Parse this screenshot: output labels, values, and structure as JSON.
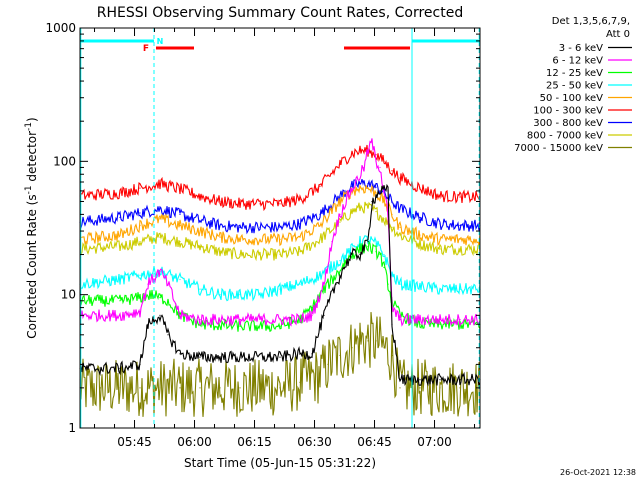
{
  "chart_data": {
    "type": "line",
    "title": "RHESSI Observing Summary Count Rates, Corrected",
    "xlabel": "Start Time (05-Jun-15 05:31:22)",
    "ylabel_main": "Corrected Count Rate (s",
    "ylabel_sup1": "-1",
    "ylabel_mid": " detector",
    "ylabel_sup2": "-1",
    "ylabel_end": ")",
    "yscale": "log",
    "ylim": [
      1,
      1000
    ],
    "xlim_minutes": [
      0,
      100
    ],
    "x_ticks": [
      {
        "minute": 13.63,
        "label": "05:45"
      },
      {
        "minute": 28.63,
        "label": "06:00"
      },
      {
        "minute": 43.63,
        "label": "06:15"
      },
      {
        "minute": 58.63,
        "label": "06:30"
      },
      {
        "minute": 73.63,
        "label": "06:45"
      },
      {
        "minute": 88.63,
        "label": "07:00"
      }
    ],
    "y_ticks": [
      {
        "value": 1,
        "label": "1"
      },
      {
        "value": 10,
        "label": "10"
      },
      {
        "value": 100,
        "label": "100"
      },
      {
        "value": 1000,
        "label": "1000"
      }
    ],
    "legend_header": [
      "Det 1,3,5,6,7,9,",
      "Att 0"
    ],
    "series": [
      {
        "name": "3 - 6 keV",
        "color": "#000000",
        "x": [
          0,
          10,
          15,
          17,
          20,
          22,
          25,
          30,
          40,
          50,
          55,
          58,
          61,
          64,
          66,
          68,
          70,
          72,
          73,
          75,
          77,
          78,
          80,
          85,
          90,
          95,
          100
        ],
        "y": [
          2.8,
          2.8,
          3.0,
          6.0,
          7.0,
          5.0,
          3.6,
          3.4,
          3.4,
          3.4,
          3.6,
          3.6,
          7,
          12,
          16,
          20,
          20,
          25,
          50,
          60,
          60,
          6,
          2.3,
          2.3,
          2.3,
          2.3,
          2.3
        ]
      },
      {
        "name": "6 - 12 keV",
        "color": "#ff00ff",
        "x": [
          0,
          10,
          15,
          17,
          20,
          22,
          25,
          30,
          40,
          50,
          55,
          58,
          61,
          63,
          65,
          67,
          69,
          71,
          72,
          73,
          74,
          75,
          76,
          77,
          78,
          80,
          85,
          90,
          95,
          100
        ],
        "y": [
          7,
          7,
          7.5,
          12,
          15,
          12,
          7,
          6.5,
          6.5,
          6.5,
          6.5,
          7,
          12,
          25,
          40,
          55,
          70,
          90,
          120,
          140,
          100,
          90,
          60,
          40,
          8,
          6.5,
          6.5,
          6.5,
          6.5,
          6.5
        ]
      },
      {
        "name": "12 - 25 keV",
        "color": "#00ff00",
        "x": [
          0,
          10,
          15,
          18,
          20,
          22,
          25,
          30,
          40,
          50,
          55,
          58,
          61,
          64,
          66,
          68,
          70,
          72,
          74,
          75,
          76,
          77,
          78,
          80,
          85,
          90,
          95,
          100
        ],
        "y": [
          9,
          9,
          9.5,
          10,
          9.5,
          9,
          7,
          6,
          5.8,
          5.8,
          6.5,
          8,
          11,
          14,
          17,
          20,
          22,
          23,
          21,
          20,
          16,
          12,
          9,
          7,
          6,
          6,
          6,
          6
        ]
      },
      {
        "name": "25 - 50 keV",
        "color": "#00ffff",
        "x": [
          0,
          5,
          10,
          15,
          20,
          25,
          30,
          35,
          40,
          45,
          50,
          55,
          60,
          65,
          70,
          72,
          74,
          76,
          78,
          80,
          85,
          90,
          95,
          100
        ],
        "y": [
          12,
          12.5,
          13,
          14,
          15,
          13,
          11,
          10,
          10,
          10,
          11,
          12,
          14,
          18,
          25,
          26,
          24,
          20,
          14,
          12,
          11.5,
          11,
          11,
          11
        ]
      },
      {
        "name": "50 - 100 keV",
        "color": "#ffa500",
        "x": [
          0,
          10,
          15,
          20,
          25,
          30,
          35,
          40,
          45,
          50,
          55,
          60,
          65,
          68,
          70,
          72,
          74,
          76,
          78,
          80,
          85,
          90,
          95,
          100
        ],
        "y": [
          26,
          28,
          33,
          37,
          33,
          30,
          27,
          26,
          26,
          26,
          27,
          33,
          50,
          60,
          63,
          63,
          58,
          50,
          40,
          32,
          28,
          26,
          26,
          26
        ]
      },
      {
        "name": "100 - 300 keV",
        "color": "#ff0000",
        "x": [
          0,
          10,
          15,
          20,
          25,
          30,
          35,
          40,
          45,
          50,
          55,
          60,
          65,
          68,
          70,
          72,
          74,
          76,
          78,
          80,
          85,
          90,
          95,
          100
        ],
        "y": [
          55,
          58,
          63,
          68,
          62,
          55,
          50,
          48,
          48,
          48,
          52,
          65,
          95,
          115,
          120,
          120,
          112,
          100,
          85,
          75,
          63,
          55,
          54,
          54
        ]
      },
      {
        "name": "300 - 800 keV",
        "color": "#0000ff",
        "x": [
          0,
          10,
          15,
          20,
          25,
          30,
          35,
          40,
          45,
          50,
          55,
          60,
          65,
          68,
          70,
          72,
          74,
          76,
          78,
          80,
          85,
          90,
          95,
          100
        ],
        "y": [
          35,
          38,
          41,
          44,
          40,
          36,
          33,
          32,
          32,
          32,
          34,
          40,
          55,
          65,
          68,
          68,
          64,
          58,
          50,
          44,
          38,
          34,
          33,
          33
        ]
      },
      {
        "name": "800 - 7000 keV",
        "color": "#cccc00",
        "x": [
          0,
          10,
          15,
          20,
          25,
          30,
          35,
          40,
          45,
          50,
          55,
          60,
          65,
          68,
          70,
          72,
          74,
          76,
          78,
          80,
          85,
          90,
          95,
          100
        ],
        "y": [
          22,
          23,
          25,
          27,
          25,
          23,
          21,
          20,
          20,
          20,
          21,
          26,
          35,
          42,
          45,
          45,
          42,
          37,
          32,
          28,
          24,
          22,
          22,
          22
        ]
      },
      {
        "name": "7000 - 15000 keV",
        "color": "#808000",
        "x": [
          0,
          5,
          10,
          15,
          20,
          25,
          30,
          35,
          40,
          45,
          50,
          55,
          60,
          62,
          65,
          68,
          70,
          72,
          74,
          76,
          78,
          80,
          85,
          90,
          95,
          100
        ],
        "y": [
          2,
          2,
          2,
          2,
          2,
          2,
          2,
          2,
          2,
          2,
          2,
          2.2,
          2.5,
          3,
          3.5,
          4,
          4.5,
          4.5,
          4.5,
          4,
          3.5,
          2,
          2,
          2,
          2,
          2
        ]
      }
    ],
    "flag_bars": [
      {
        "label": "F",
        "color": "#ff0000"
      },
      {
        "label": "N",
        "color": "#00ffff"
      }
    ],
    "flag_segments": [
      {
        "flag": "N",
        "row": "upper",
        "start": 0,
        "end": 18.5
      },
      {
        "flag": "N",
        "row": "upper",
        "start": 83,
        "end": 100
      },
      {
        "flag": "F",
        "row": "lower",
        "start": 19,
        "end": 28.5
      },
      {
        "flag": "F",
        "row": "lower",
        "start": 66,
        "end": 82.5
      }
    ],
    "vertical_markers": [
      {
        "minute": 0.2,
        "style": "solid",
        "color": "#00ffff"
      },
      {
        "minute": 18.5,
        "style": "dashed",
        "color": "#00ffff"
      },
      {
        "minute": 83,
        "style": "solid",
        "color": "#00ffff"
      },
      {
        "minute": 99.8,
        "style": "dashed",
        "color": "#00ffff"
      }
    ],
    "timestamp": "26-Oct-2021 12:38"
  }
}
